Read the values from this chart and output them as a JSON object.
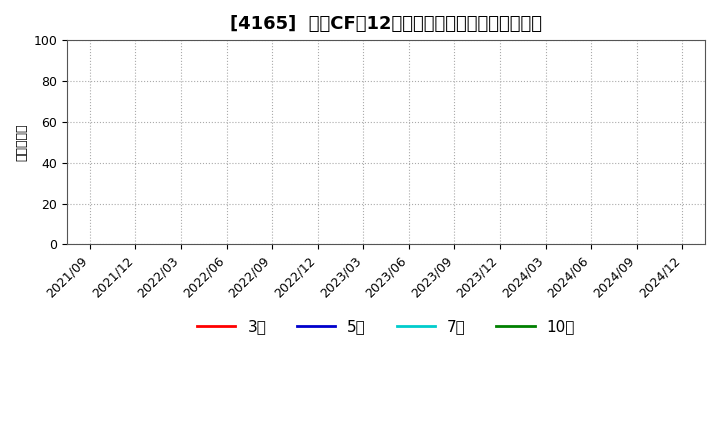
{
  "title": "[4165]  営業CFだ12か月移動合計の標準偏差の推移",
  "ylabel": "（百万円）",
  "ylim": [
    0,
    100
  ],
  "yticks": [
    0,
    20,
    40,
    60,
    80,
    100
  ],
  "x_ticks": [
    "2021/09",
    "2021/12",
    "2022/03",
    "2022/06",
    "2022/09",
    "2022/12",
    "2023/03",
    "2023/06",
    "2023/09",
    "2023/12",
    "2024/03",
    "2024/06",
    "2024/09",
    "2024/12"
  ],
  "legend_entries": [
    {
      "label": "3年",
      "color": "#ff0000"
    },
    {
      "label": "5年",
      "color": "#0000cc"
    },
    {
      "label": "7年",
      "color": "#00cccc"
    },
    {
      "label": "10年",
      "color": "#008000"
    }
  ],
  "background_color": "#ffffff",
  "plot_bg_color": "#ffffff",
  "grid_color": "#aaaaaa",
  "title_fontsize": 13,
  "axis_fontsize": 9,
  "ylabel_fontsize": 9,
  "legend_fontsize": 11
}
